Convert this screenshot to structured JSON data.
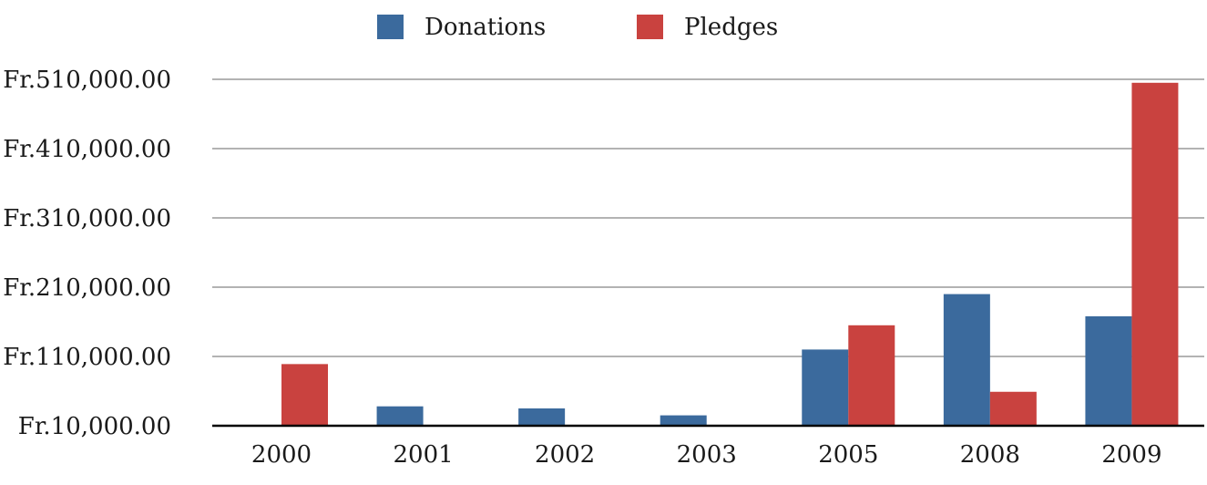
{
  "chart_data": {
    "type": "bar",
    "title": "",
    "xlabel": "",
    "ylabel": "",
    "categories": [
      "2000",
      "2001",
      "2002",
      "2003",
      "2005",
      "2008",
      "2009"
    ],
    "series": [
      {
        "name": "Donations",
        "color": "#3b6a9d",
        "values": [
          null,
          38000,
          35000,
          25000,
          120000,
          200000,
          168000
        ]
      },
      {
        "name": "Pledges",
        "color": "#c9423f",
        "values": [
          99000,
          null,
          null,
          null,
          155000,
          59000,
          505000
        ]
      }
    ],
    "ylim": [
      10000,
      510000
    ],
    "yticks": [
      10000,
      110000,
      210000,
      310000,
      410000,
      510000
    ],
    "ytick_labels": [
      "Fr.10,000.00",
      "Fr.110,000.00",
      "Fr.210,000.00",
      "Fr.310,000.00",
      "Fr.410,000.00",
      "Fr.510,000.00"
    ],
    "grid": true,
    "legend_position": "top-center"
  }
}
